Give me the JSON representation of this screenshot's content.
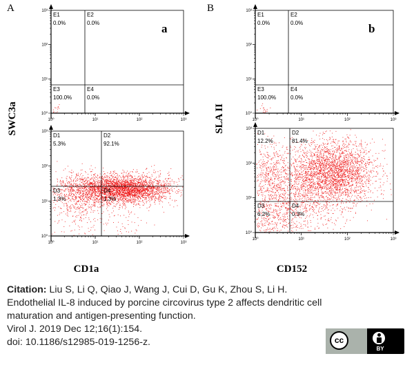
{
  "figure": {
    "panels": [
      {
        "letter": "A",
        "sub_letter": "a",
        "y_axis_label": "SWC3a",
        "x_axis_label": "CD1a",
        "upper_tick_labels": [
          "10³",
          "10²",
          "10¹",
          "10⁰",
          "10⁰",
          "10¹",
          "10²",
          "10³"
        ],
        "lower_tick_labels": [
          "10³",
          "10²",
          "10¹",
          "10⁰",
          "10⁰",
          "10¹",
          "10²",
          "10³"
        ],
        "upper_quadrants": [
          {
            "name": "E1",
            "value": "0.0%"
          },
          {
            "name": "E2",
            "value": "0.0%"
          },
          {
            "name": "E3",
            "value": "100.0%"
          },
          {
            "name": "E4",
            "value": "0.0%"
          }
        ],
        "lower_quadrants": [
          {
            "name": "D1",
            "value": "5.3%"
          },
          {
            "name": "D2",
            "value": "92.1%"
          },
          {
            "name": "D3",
            "value": "1.3%"
          },
          {
            "name": "D4",
            "value": "1.3%"
          }
        ]
      },
      {
        "letter": "B",
        "sub_letter": "b",
        "y_axis_label": "SLA II",
        "x_axis_label": "CD152",
        "upper_tick_labels": [
          "10³",
          "10²",
          "10¹",
          "10⁰",
          "10⁰",
          "10¹",
          "10²",
          "10³"
        ],
        "lower_tick_labels": [
          "10³",
          "10²",
          "10¹",
          "10⁰",
          "10⁰",
          "10¹",
          "10²",
          "10³"
        ],
        "upper_quadrants": [
          {
            "name": "E1",
            "value": "0.0%"
          },
          {
            "name": "E2",
            "value": "0.0%"
          },
          {
            "name": "E3",
            "value": "100.0%"
          },
          {
            "name": "E4",
            "value": "0.0%"
          }
        ],
        "lower_quadrants": [
          {
            "name": "D1",
            "value": "12.2%"
          },
          {
            "name": "D2",
            "value": "81.4%"
          },
          {
            "name": "D3",
            "value": "6.2%"
          },
          {
            "name": "D4",
            "value": "0.3%"
          }
        ]
      }
    ]
  },
  "chart_data": [
    {
      "type": "scatter",
      "panel": "A (upper, E gates)",
      "x_range_log10": [
        0,
        3
      ],
      "y_range_log10": [
        0,
        3
      ],
      "quadrant_percentages": {
        "E1": 0.0,
        "E2": 0.0,
        "E3": 100.0,
        "E4": 0.0
      },
      "populations": [
        {
          "cx": 0.1,
          "cy": 0.1,
          "sx": 0.08,
          "sy": 0.08,
          "n": 20
        }
      ]
    },
    {
      "type": "scatter",
      "panel": "A (lower, D gates)",
      "x_range_log10": [
        0,
        3
      ],
      "y_range_log10": [
        0,
        3
      ],
      "quadrant_percentages": {
        "D1": 5.3,
        "D2": 92.1,
        "D3": 1.3,
        "D4": 1.3
      },
      "populations": [
        {
          "cx": 1.6,
          "cy": 1.35,
          "sx": 0.55,
          "sy": 0.2,
          "n": 3200
        },
        {
          "cx": 0.6,
          "cy": 1.2,
          "sx": 0.35,
          "sy": 0.3,
          "n": 500
        },
        {
          "cx": 0.6,
          "cy": 0.6,
          "sx": 0.4,
          "sy": 0.35,
          "n": 120
        },
        {
          "cx": 1.5,
          "cy": 0.5,
          "sx": 0.4,
          "sy": 0.35,
          "n": 80
        }
      ]
    },
    {
      "type": "scatter",
      "panel": "B (upper, E gates)",
      "x_range_log10": [
        0,
        3
      ],
      "y_range_log10": [
        0,
        3
      ],
      "quadrant_percentages": {
        "E1": 0.0,
        "E2": 0.0,
        "E3": 100.0,
        "E4": 0.0
      },
      "populations": [
        {
          "cx": 0.15,
          "cy": 0.1,
          "sx": 0.1,
          "sy": 0.09,
          "n": 25
        }
      ]
    },
    {
      "type": "scatter",
      "panel": "B (lower, D gates)",
      "x_range_log10": [
        0,
        3
      ],
      "y_range_log10": [
        0,
        3
      ],
      "quadrant_percentages": {
        "D1": 12.2,
        "D2": 81.4,
        "D3": 6.2,
        "D4": 0.3
      },
      "populations": [
        {
          "cx": 1.7,
          "cy": 1.75,
          "sx": 0.45,
          "sy": 0.45,
          "n": 2600
        },
        {
          "cx": 0.8,
          "cy": 1.05,
          "sx": 0.6,
          "sy": 0.6,
          "n": 1100
        },
        {
          "cx": 0.3,
          "cy": 1.7,
          "sx": 0.25,
          "sy": 0.45,
          "n": 350
        },
        {
          "cx": 0.35,
          "cy": 0.4,
          "sx": 0.25,
          "sy": 0.3,
          "n": 200
        },
        {
          "cx": 1.2,
          "cy": 0.5,
          "sx": 0.3,
          "sy": 0.3,
          "n": 15
        }
      ]
    }
  ],
  "citation": {
    "label": "Citation:",
    "authors": " Liu S, Li Q, Qiao J, Wang J, Cui D, Gu K, Zhou S, Li H.",
    "title_line1": "Endothelial IL-8 induced by porcine circovirus type 2 affects dendritic cell",
    "title_line2": "maturation and antigen-presenting function.",
    "journal": "Virol J. 2019 Dec 12;16(1):154.",
    "doi": "doi: 10.1186/s12985-019-1256-z."
  },
  "license": {
    "cc_text": "cc",
    "by_text": "BY"
  },
  "colors": {
    "dot": "#ee1111",
    "axis": "#000000",
    "citation_text": "#222222"
  }
}
